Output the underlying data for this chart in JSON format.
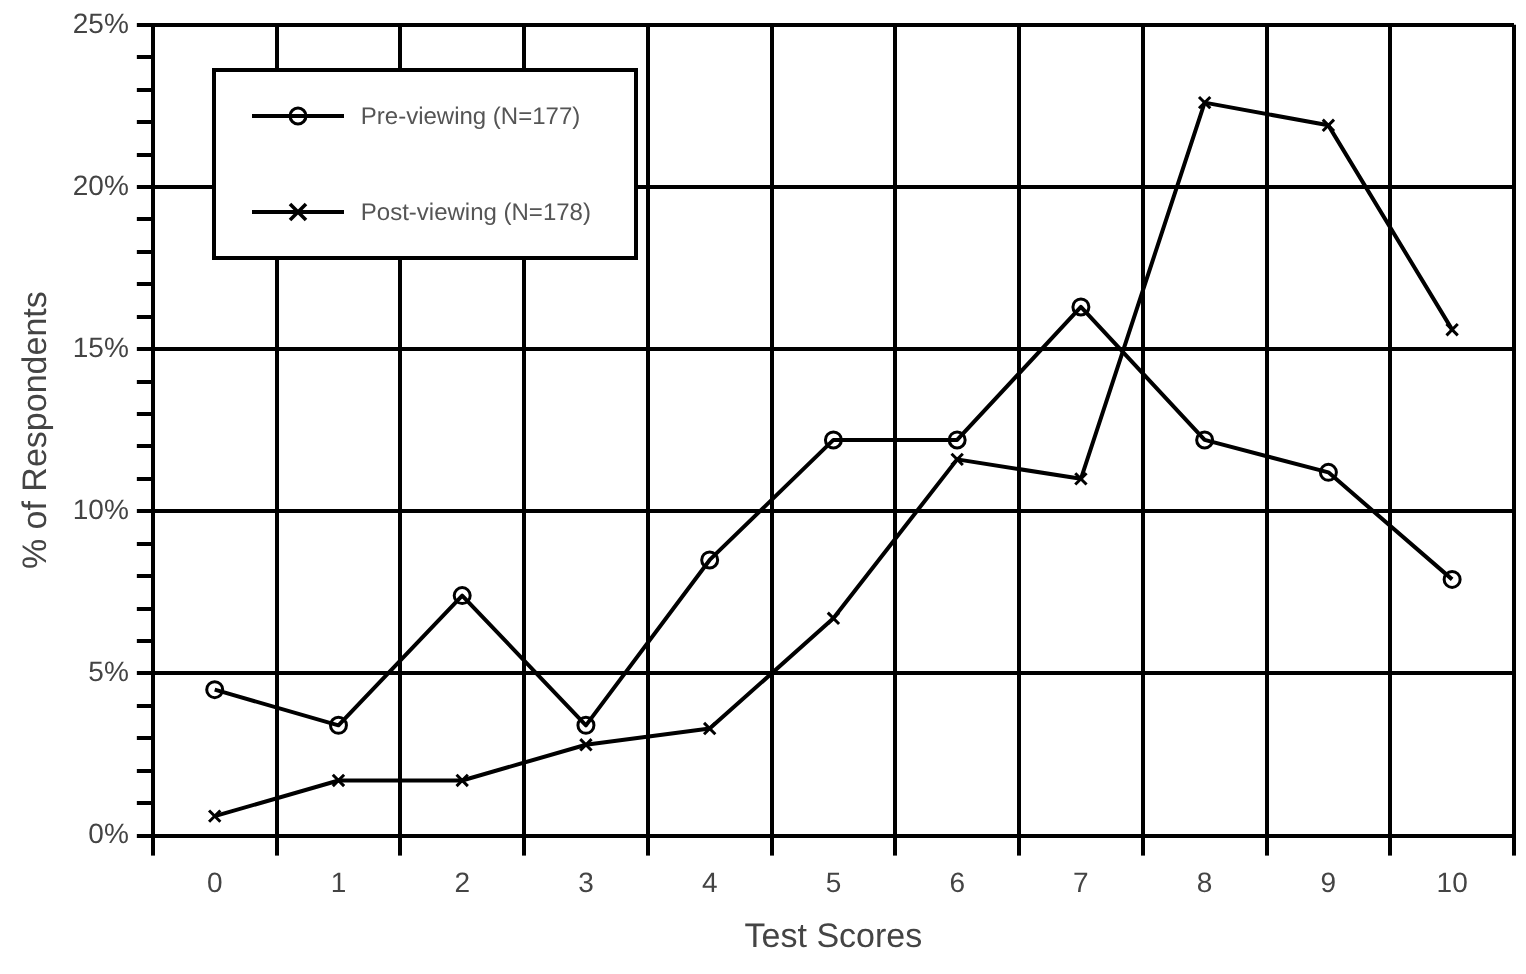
{
  "chart_data": {
    "type": "line",
    "xlabel": "Test Scores",
    "ylabel": "% of Respondents",
    "categories": [
      "0",
      "1",
      "2",
      "3",
      "4",
      "5",
      "6",
      "7",
      "8",
      "9",
      "10"
    ],
    "series": [
      {
        "name": "Pre-viewing (N=177)",
        "color": "#000000",
        "marker": "circle",
        "values": [
          4.5,
          3.4,
          7.4,
          3.4,
          8.5,
          12.2,
          12.2,
          16.3,
          12.2,
          11.2,
          7.9
        ]
      },
      {
        "name": "Post-viewing (N=178)",
        "color": "#000000",
        "marker": "cross",
        "values": [
          0.6,
          1.7,
          1.7,
          2.8,
          3.3,
          6.7,
          11.6,
          11.0,
          22.6,
          21.9,
          15.6
        ]
      }
    ],
    "ylim": [
      0,
      25
    ],
    "yticks": [
      {
        "value": 0,
        "label": "0%"
      },
      {
        "value": 1,
        "label": null
      },
      {
        "value": 2,
        "label": null
      },
      {
        "value": 3,
        "label": null
      },
      {
        "value": 4,
        "label": null
      },
      {
        "value": 5,
        "label": "5%"
      },
      {
        "value": 6,
        "label": null
      },
      {
        "value": 7,
        "label": null
      },
      {
        "value": 8,
        "label": null
      },
      {
        "value": 9,
        "label": null
      },
      {
        "value": 10,
        "label": "10%"
      },
      {
        "value": 11,
        "label": null
      },
      {
        "value": 12,
        "label": null
      },
      {
        "value": 13,
        "label": null
      },
      {
        "value": 14,
        "label": null
      },
      {
        "value": 15,
        "label": "15%"
      },
      {
        "value": 16,
        "label": null
      },
      {
        "value": 17,
        "label": null
      },
      {
        "value": 18,
        "label": null
      },
      {
        "value": 19,
        "label": null
      },
      {
        "value": 20,
        "label": "20%"
      },
      {
        "value": 21,
        "label": null
      },
      {
        "value": 22,
        "label": null
      },
      {
        "value": 23,
        "label": null
      },
      {
        "value": 24,
        "label": null
      },
      {
        "value": 25,
        "label": "25%"
      }
    ],
    "grid": true,
    "legend": "top left",
    "line_style": "solid"
  }
}
